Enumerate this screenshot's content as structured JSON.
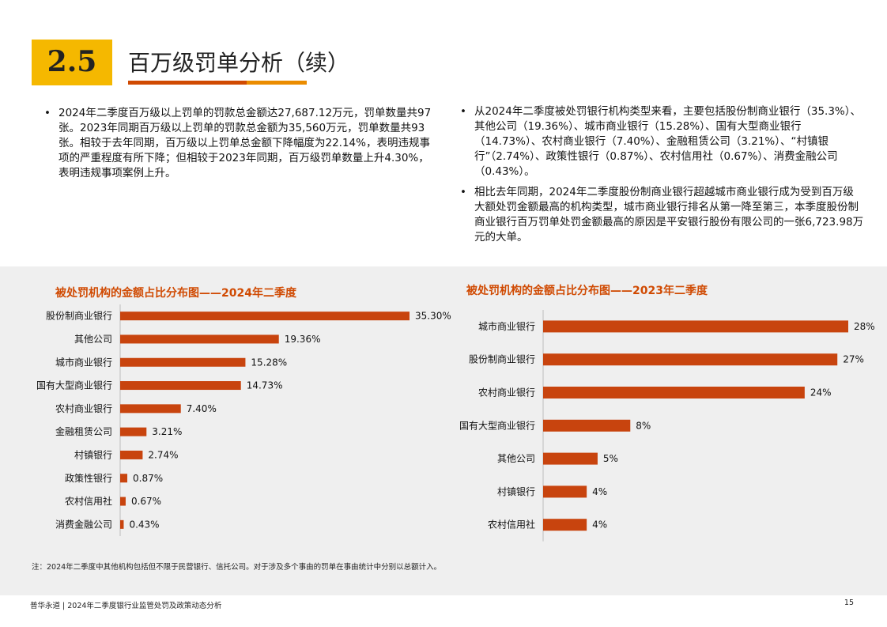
{
  "header": {
    "section_number": "2.5",
    "title": "百万级罚单分析（续）"
  },
  "left_bullets": [
    "2024年二季度百万级以上罚单的罚款总金额达27,687.12万元，罚单数量共97张。2023年同期百万级以上罚单的罚款总金额为35,560万元，罚单数量共93张。相较于去年同期，百万级以上罚单总金额下降幅度为22.14%，表明违规事项的严重程度有所下降；但相较于2023年同期，百万级罚单数量上升4.30%，表明违规事项案例上升。"
  ],
  "right_bullets": [
    "从2024年二季度被处罚银行机构类型来看，主要包括股份制商业银行（35.3%）、其他公司（19.36%）、城市商业银行（15.28%）、国有大型商业银行（14.73%）、农村商业银行（7.40%）、金融租赁公司（3.21%）、“村镇银行”（2.74%）、政策性银行（0.87%）、农村信用社（0.67%）、消费金融公司（0.43%）。",
    "相比去年同期，2024年二季度股份制商业银行超越城市商业银行成为受到百万级大额处罚金额最高的机构类型，城市商业银行排名从第一降至第三，本季度股份制商业银行百万罚单处罚金额最高的原因是平安银行股份有限公司的一张6,723.98万元的大单。"
  ],
  "chart_data": [
    {
      "type": "bar",
      "orientation": "horizontal",
      "title": "被处罚机构的金额占比分布图——2024年二季度",
      "categories": [
        "股份制商业银行",
        "其他公司",
        "城市商业银行",
        "国有大型商业银行",
        "农村商业银行",
        "金融租赁公司",
        "村镇银行",
        "政策性银行",
        "农村信用社",
        "消费金融公司"
      ],
      "values": [
        35.3,
        19.36,
        15.28,
        14.73,
        7.4,
        3.21,
        2.74,
        0.87,
        0.67,
        0.43
      ],
      "labels": [
        "35.30%",
        "19.36%",
        "15.28%",
        "14.73%",
        "7.40%",
        "3.21%",
        "2.74%",
        "0.87%",
        "0.67%",
        "0.43%"
      ],
      "xlim": [
        0,
        35.3
      ],
      "grid": false,
      "bar_color": "#c8440e"
    },
    {
      "type": "bar",
      "orientation": "horizontal",
      "title": "被处罚机构的金额占比分布图——2023年二季度",
      "categories": [
        "城市商业银行",
        "股份制商业银行",
        "农村商业银行",
        "国有大型商业银行",
        "其他公司",
        "村镇银行",
        "农村信用社"
      ],
      "values": [
        28,
        27,
        24,
        8,
        5,
        4,
        4
      ],
      "labels": [
        "28%",
        "27%",
        "24%",
        "8%",
        "5%",
        "4%",
        "4%"
      ],
      "xlim": [
        0,
        28
      ],
      "grid": false,
      "bar_color": "#c8440e"
    }
  ],
  "footnote": "注：2024年二季度中其他机构包括但不限于民营银行、信托公司。对于涉及多个事由的罚单在事由统计中分别以总额计入。",
  "footer": {
    "text": "普华永道 | 2024年二季度银行业监管处罚及政策动态分析",
    "page_number": "15"
  }
}
